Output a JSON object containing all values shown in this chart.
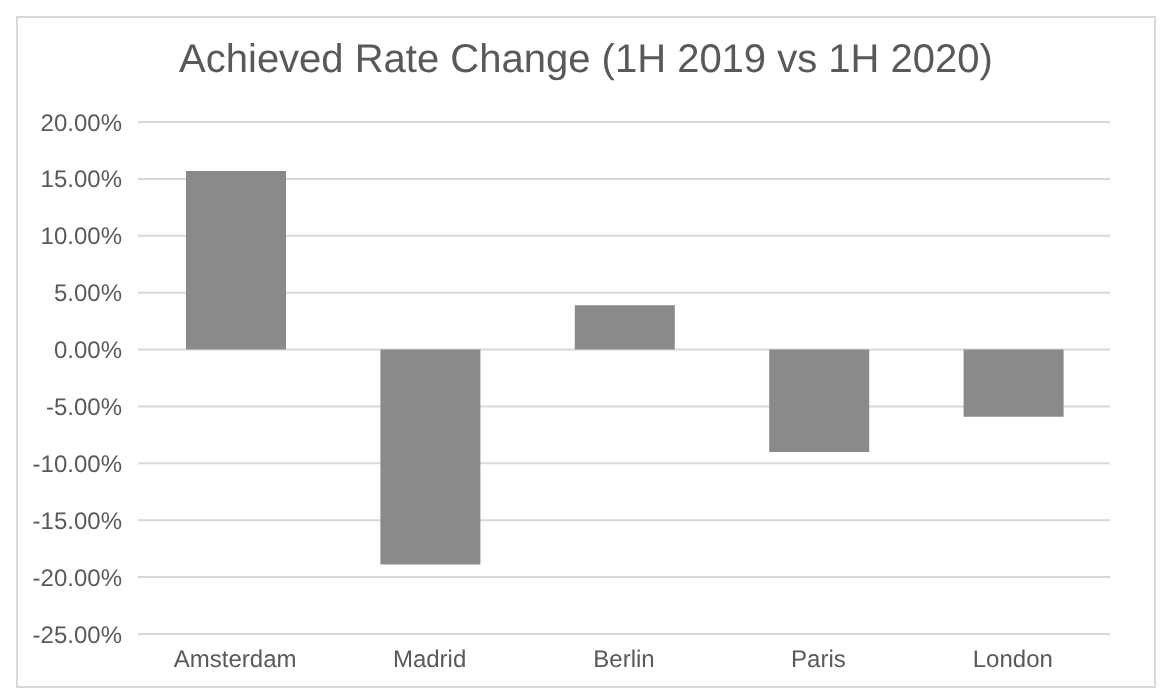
{
  "chart_data": {
    "type": "bar",
    "title": "Achieved Rate Change (1H 2019 vs 1H 2020)",
    "categories": [
      "Amsterdam",
      "Madrid",
      "Berlin",
      "Paris",
      "London"
    ],
    "values": [
      15.7,
      -18.9,
      3.9,
      -9.0,
      -5.9
    ],
    "color": "#898a8c",
    "ylim": [
      -25,
      20
    ],
    "yticks": [
      {
        "value": -25,
        "label": "-25.00%"
      },
      {
        "value": -20,
        "label": "-20.00%"
      },
      {
        "value": -15,
        "label": "-15.00%"
      },
      {
        "value": -10,
        "label": "-10.00%"
      },
      {
        "value": -5,
        "label": "-5.00%"
      },
      {
        "value": 0,
        "label": "0.00%"
      },
      {
        "value": 5,
        "label": "5.00%"
      },
      {
        "value": 10,
        "label": "10.00%"
      },
      {
        "value": 15,
        "label": "15.00%"
      },
      {
        "value": 20,
        "label": "20.00%"
      }
    ],
    "grid": "y"
  }
}
